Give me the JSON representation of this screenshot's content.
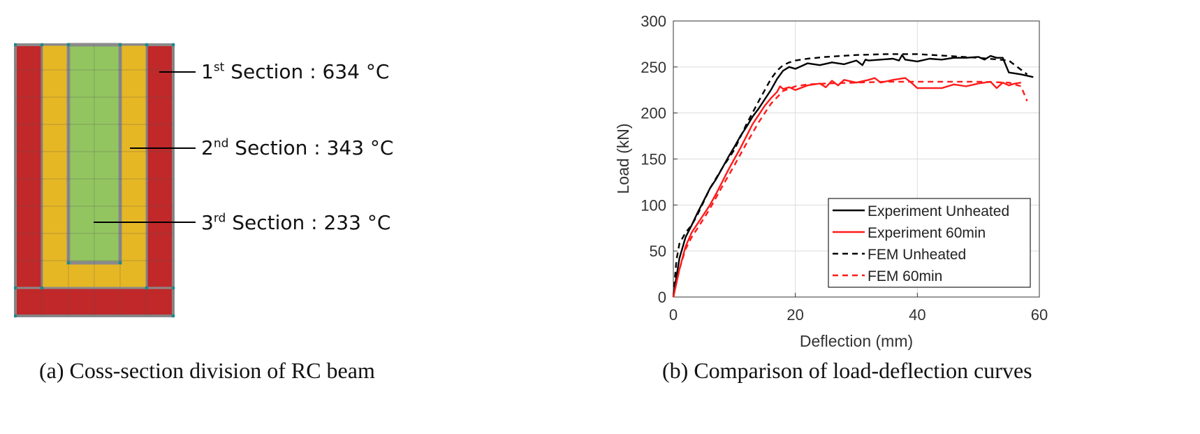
{
  "left_panel": {
    "caption": "(a) Coss-section division of RC beam",
    "section_colors": {
      "outer": "#c0282a",
      "middle": "#e6b725",
      "inner": "#92c560",
      "mesh": "#8a8a8a",
      "node": "#1a8a8a"
    },
    "labels": [
      {
        "ord": "1",
        "suffix": "st",
        "rest": " Section : 634 °C"
      },
      {
        "ord": "2",
        "suffix": "nd",
        "rest": " Section : 343 °C"
      },
      {
        "ord": "3",
        "suffix": "rd",
        "rest": " Section : 233 °C"
      }
    ]
  },
  "right_panel": {
    "caption": "(b) Comparison of load-deflection curves"
  },
  "chart_data": {
    "type": "line",
    "xlabel": "Deflection (mm)",
    "ylabel": "Load (kN)",
    "xlim": [
      0,
      60
    ],
    "ylim": [
      0,
      300
    ],
    "xticks": [
      "0",
      "20",
      "40",
      "60"
    ],
    "yticks": [
      "0",
      "50",
      "100",
      "150",
      "200",
      "250",
      "300"
    ],
    "grid": true,
    "legend_position": "bottom-right",
    "series": [
      {
        "name": "Experiment Unheated",
        "color": "#000000",
        "dash": "solid",
        "x": [
          0,
          0.5,
          1,
          2,
          3,
          4,
          5,
          6,
          7,
          8,
          9,
          10,
          11,
          12,
          13,
          14,
          15,
          16,
          17,
          18,
          19,
          20,
          22,
          24,
          26,
          28,
          30,
          31,
          31.5,
          32,
          34,
          36,
          37,
          37.5,
          38,
          40,
          42,
          44,
          46,
          48,
          50,
          51,
          52,
          53,
          54,
          55,
          57,
          59
        ],
        "y": [
          0,
          22,
          42,
          65,
          78,
          92,
          105,
          118,
          128,
          140,
          152,
          163,
          175,
          185,
          196,
          205,
          215,
          225,
          237,
          246,
          250,
          248,
          254,
          252,
          255,
          253,
          257,
          252,
          258,
          257,
          258,
          259,
          257,
          263,
          258,
          256,
          259,
          258,
          260,
          260,
          261,
          258,
          262,
          260,
          260,
          244,
          242,
          239
        ]
      },
      {
        "name": "Experiment 60min",
        "color": "#ff1a1a",
        "dash": "solid",
        "x": [
          0,
          1,
          2,
          3,
          4,
          5,
          6,
          7,
          8,
          9,
          10,
          11,
          12,
          13,
          14,
          15,
          16,
          17,
          17.5,
          18,
          19,
          20,
          22,
          24,
          25,
          26,
          27,
          28,
          30,
          32,
          33,
          34,
          36,
          38,
          39,
          40,
          42,
          44,
          46,
          48,
          50,
          52,
          53,
          54,
          55,
          56,
          57
        ],
        "y": [
          0,
          30,
          55,
          70,
          80,
          90,
          100,
          112,
          125,
          138,
          150,
          162,
          175,
          188,
          198,
          208,
          216,
          223,
          229,
          226,
          228,
          225,
          230,
          232,
          228,
          235,
          230,
          236,
          233,
          236,
          238,
          233,
          236,
          238,
          233,
          227,
          227,
          227,
          231,
          229,
          232,
          234,
          227,
          233,
          230,
          232,
          233
        ]
      },
      {
        "name": "FEM Unheated",
        "color": "#000000",
        "dash": "dashed",
        "x": [
          0,
          0.5,
          1,
          2,
          3,
          4,
          5,
          6,
          8,
          10,
          12,
          14,
          16,
          17,
          18,
          19,
          20,
          22,
          25,
          30,
          35,
          40,
          45,
          50,
          55,
          58
        ],
        "y": [
          0,
          40,
          58,
          70,
          78,
          90,
          104,
          118,
          140,
          160,
          188,
          213,
          237,
          246,
          252,
          255,
          257,
          259,
          261,
          263,
          264,
          264,
          262,
          260,
          257,
          242
        ]
      },
      {
        "name": "FEM 60min",
        "color": "#ff1a1a",
        "dash": "dashed",
        "x": [
          0,
          1,
          2,
          3,
          4,
          6,
          8,
          10,
          12,
          14,
          16,
          18,
          20,
          22,
          25,
          30,
          35,
          40,
          45,
          50,
          55,
          57,
          58
        ],
        "y": [
          0,
          30,
          52,
          65,
          75,
          96,
          120,
          143,
          167,
          190,
          210,
          224,
          229,
          231,
          232,
          233,
          234,
          234,
          234,
          234,
          233,
          229,
          213
        ]
      }
    ]
  }
}
